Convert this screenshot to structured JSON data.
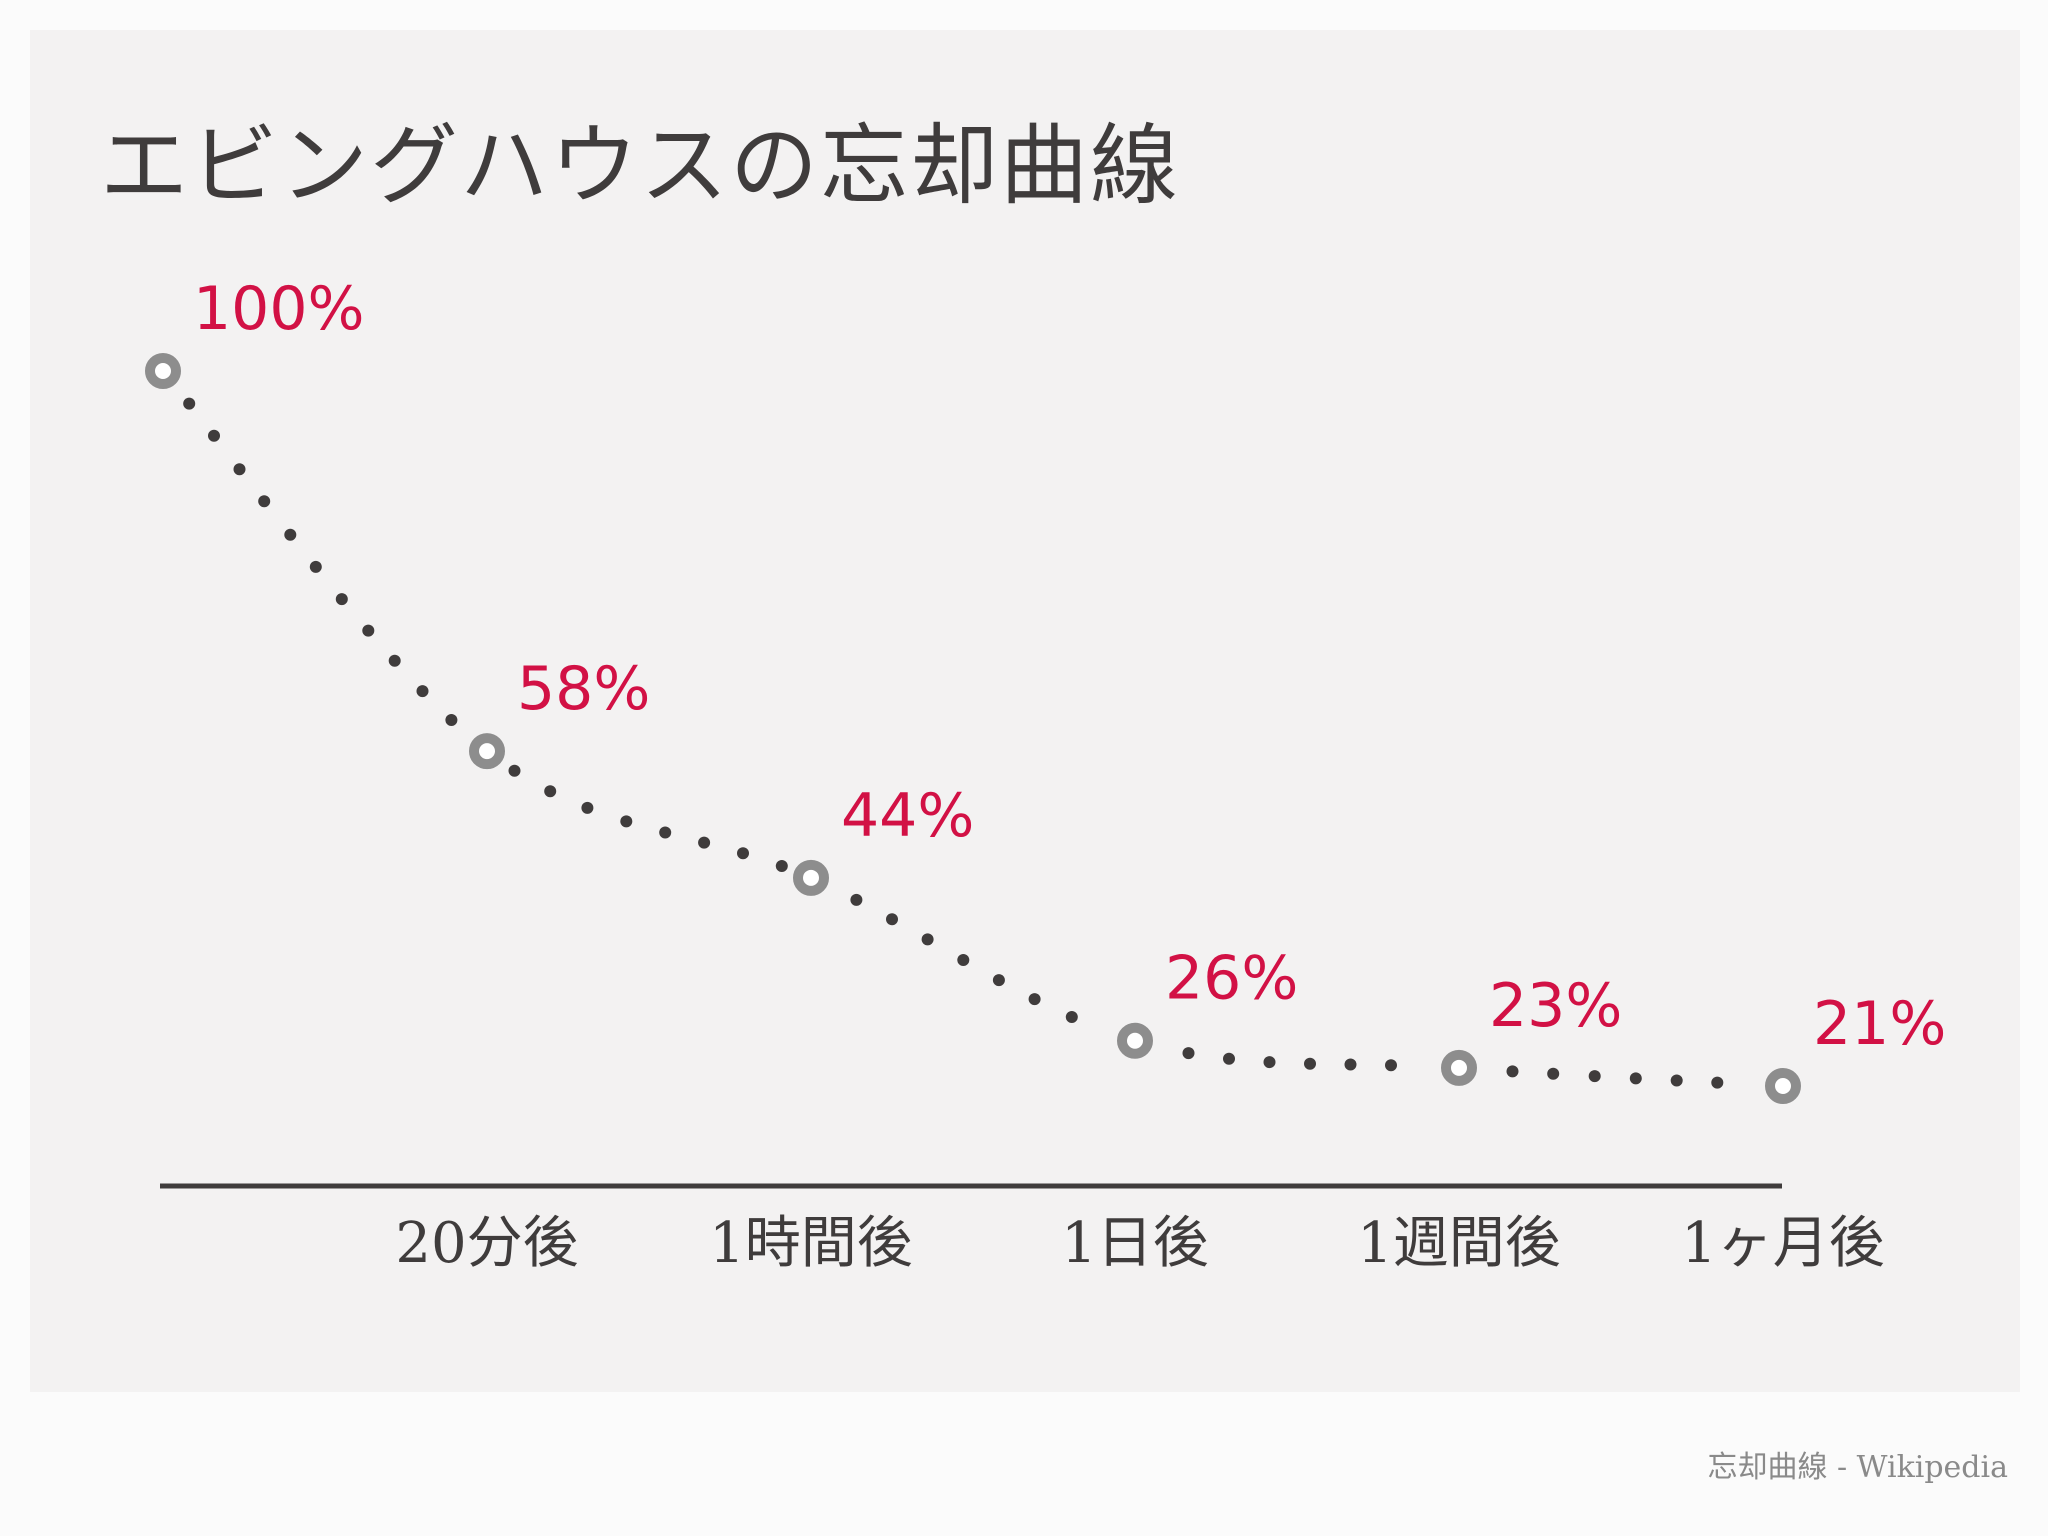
{
  "chart_data": {
    "type": "line",
    "title": "エビングハウスの忘却曲線",
    "categories": [
      "",
      "20分後",
      "1時間後",
      "1日後",
      "1週間後",
      "1ヶ月後"
    ],
    "series": [
      {
        "values": [
          100,
          58,
          44,
          26,
          23,
          21
        ],
        "labels": [
          "100%",
          "58%",
          "44%",
          "26%",
          "23%",
          "21%"
        ]
      }
    ],
    "ylim": [
      0,
      100
    ],
    "grid": false,
    "colors": {
      "line": "#3f3c3c",
      "marker": "#8d8d8d",
      "value_label": "#d21145",
      "axis": "#3f3c3c"
    }
  },
  "source": "忘却曲線 - Wikipedia"
}
